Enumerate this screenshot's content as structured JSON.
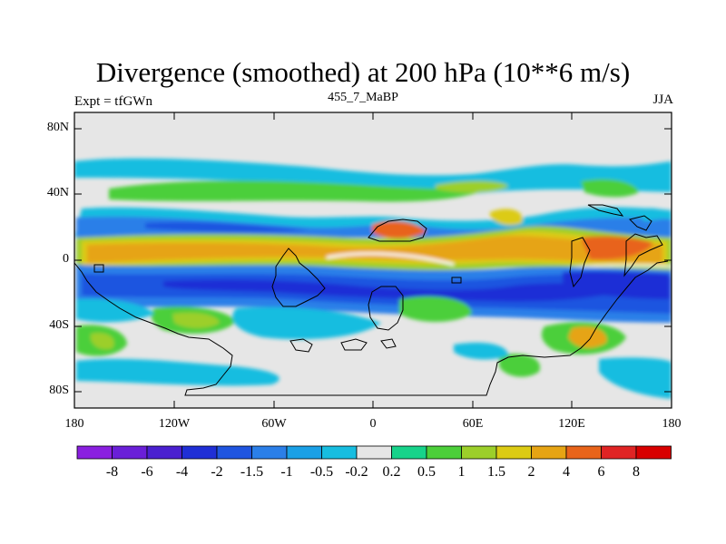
{
  "figure": {
    "title": "Divergence (smoothed) at 200 hPa (10**6 m/s)",
    "left_label": "Expt = tfGWn",
    "center_label": "455_7_MaBP",
    "right_label": "JJA"
  },
  "axes": {
    "y_ticks": [
      "80N",
      "40N",
      "0",
      "40S",
      "80S"
    ],
    "x_ticks": [
      "180",
      "120W",
      "60W",
      "0",
      "60E",
      "120E",
      "180"
    ]
  },
  "colorbar": {
    "labels": [
      "-8",
      "-6",
      "-4",
      "-2",
      "-1.5",
      "-1",
      "-0.5",
      "-0.2",
      "0.2",
      "0.5",
      "1",
      "1.5",
      "2",
      "4",
      "6",
      "8"
    ],
    "colors": [
      "#8a1fe0",
      "#6a1fd8",
      "#4a20d0",
      "#1f2fd6",
      "#1f55e0",
      "#2b7fe8",
      "#1aa0e6",
      "#17bde0",
      "#e6e6e6",
      "#17d38a",
      "#4ccf3a",
      "#9ccf2a",
      "#dccb14",
      "#e6a414",
      "#e8641a",
      "#e02424",
      "#d80000"
    ]
  }
}
